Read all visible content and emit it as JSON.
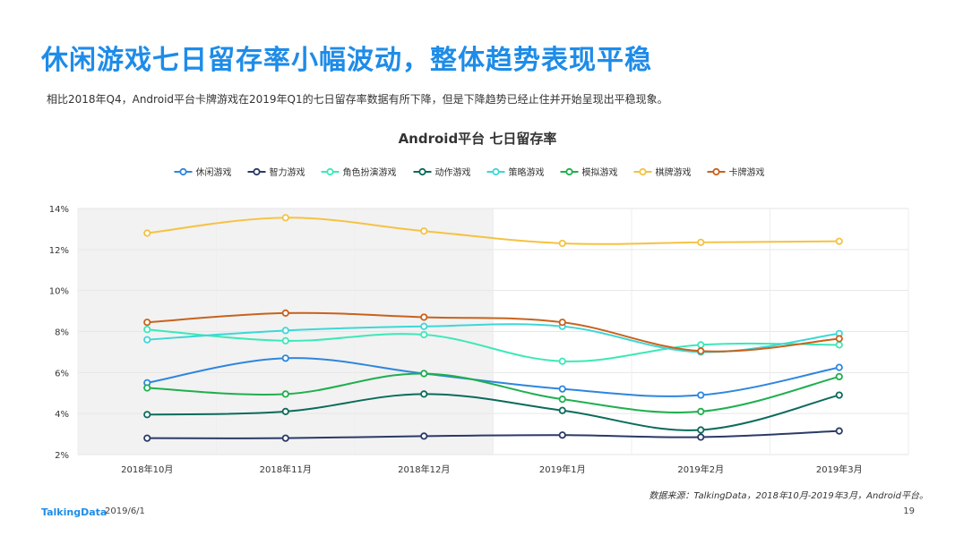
{
  "page": {
    "title": "休闲游戏七日留存率小幅波动，整体趋势表现平稳",
    "subtitle": "相比2018年Q4，Android平台卡牌游戏在2019年Q1的七日留存率数据有所下降，但是下降趋势已经止住并开始呈现出平稳现象。",
    "source": "数据来源：TalkingData，2018年10月-2019年3月，Android平台。",
    "logo": "TalkingData",
    "date": "2019/6/1",
    "page_number": "19"
  },
  "chart_data": {
    "type": "line",
    "title": "Android平台  七日留存率",
    "categories": [
      "2018年10月",
      "2018年11月",
      "2018年12月",
      "2019年1月",
      "2019年2月",
      "2019年3月"
    ],
    "y_ticks": [
      "2%",
      "4%",
      "6%",
      "8%",
      "10%",
      "12%",
      "14%"
    ],
    "ylim": [
      2,
      14
    ],
    "y_unit": "%",
    "grid": true,
    "legend_position": "top",
    "highlight_region": {
      "from": "2018年10月",
      "to": "2018年12月",
      "color": "#F2F2F2"
    },
    "series": [
      {
        "name": "休闲游戏",
        "color": "#2E86DE",
        "values": [
          5.5,
          6.7,
          5.95,
          5.2,
          4.9,
          6.25
        ]
      },
      {
        "name": "智力游戏",
        "color": "#2B3A67",
        "values": [
          2.8,
          2.8,
          2.9,
          2.95,
          2.85,
          3.15
        ]
      },
      {
        "name": "角色扮演游戏",
        "color": "#3CE8B8",
        "values": [
          8.1,
          7.55,
          7.85,
          6.55,
          7.35,
          7.35
        ]
      },
      {
        "name": "动作游戏",
        "color": "#0B6B5B",
        "values": [
          3.95,
          4.1,
          4.95,
          4.15,
          3.2,
          4.9
        ]
      },
      {
        "name": "策略游戏",
        "color": "#3FD6D6",
        "values": [
          7.6,
          8.05,
          8.25,
          8.25,
          7.0,
          7.9
        ]
      },
      {
        "name": "模拟游戏",
        "color": "#1FAF4E",
        "values": [
          5.25,
          4.95,
          5.95,
          4.7,
          4.1,
          5.8
        ]
      },
      {
        "name": "棋牌游戏",
        "color": "#F5C242",
        "values": [
          12.8,
          13.55,
          12.9,
          12.3,
          12.35,
          12.4
        ]
      },
      {
        "name": "卡牌游戏",
        "color": "#C8621E",
        "values": [
          8.45,
          8.9,
          8.7,
          8.45,
          7.05,
          7.65
        ]
      }
    ]
  }
}
